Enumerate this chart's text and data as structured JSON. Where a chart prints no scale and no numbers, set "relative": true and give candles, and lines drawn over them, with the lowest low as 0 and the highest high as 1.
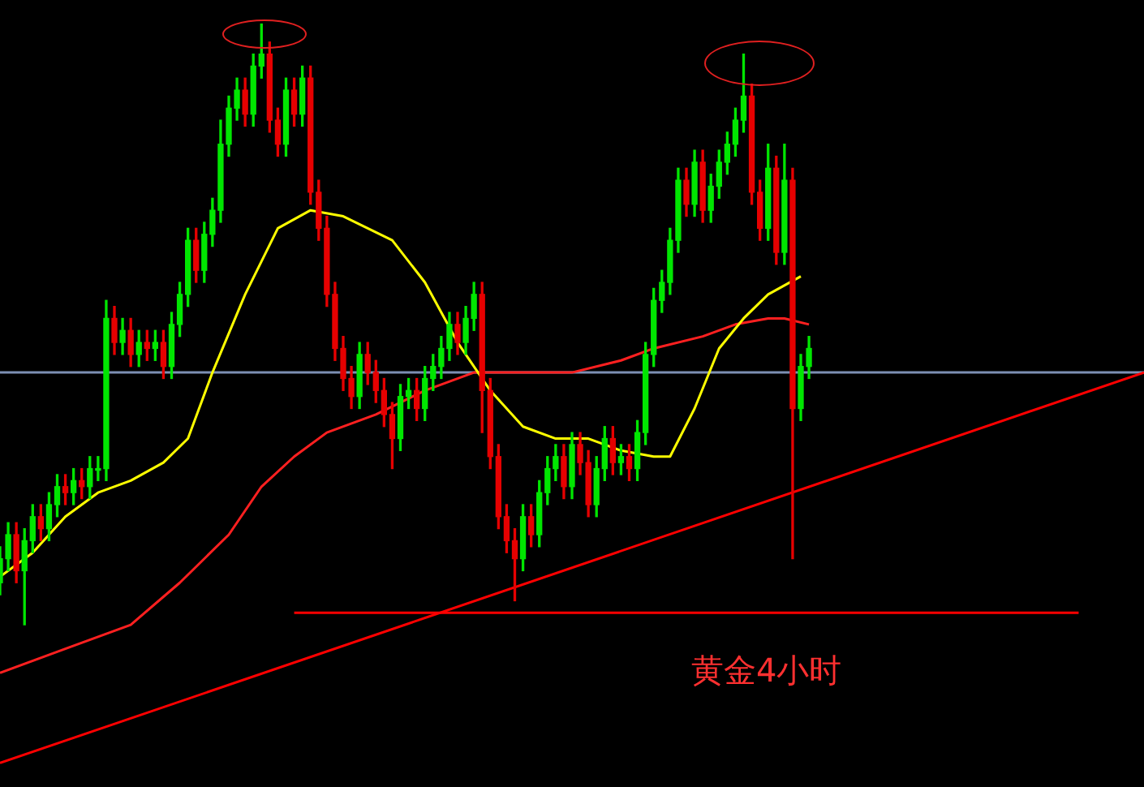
{
  "chart_data": {
    "type": "candlestick",
    "relative": true,
    "tick_labels": false,
    "legend": false,
    "categories": [
      null,
      null,
      null,
      null,
      null,
      null,
      null,
      null,
      null,
      null,
      null,
      null,
      null,
      null,
      null,
      null,
      null,
      null,
      null,
      null,
      null,
      null,
      null,
      null,
      null,
      null,
      null,
      null,
      null,
      null,
      null,
      null,
      null,
      null,
      null,
      null,
      null,
      null,
      null,
      null,
      null,
      null,
      null,
      null,
      null,
      null,
      null,
      null,
      null,
      null,
      null,
      null,
      null,
      null,
      null,
      null,
      null,
      null,
      null,
      null,
      null,
      null,
      null,
      null,
      null,
      null,
      null,
      null,
      null,
      null,
      null,
      null,
      null,
      null,
      null,
      null,
      null,
      null,
      null,
      null,
      null,
      null,
      null,
      null,
      null,
      null,
      null,
      null,
      null,
      null,
      null,
      null,
      null,
      null,
      null,
      null,
      null,
      null,
      null,
      null,
      null,
      null,
      null,
      null,
      null,
      null,
      null,
      null,
      null,
      null,
      null,
      null,
      null,
      null,
      null,
      null,
      null,
      null,
      null,
      null,
      null,
      null,
      null,
      null,
      null,
      null,
      null,
      null,
      null,
      null,
      null,
      null,
      null,
      null,
      null,
      null,
      null,
      null,
      null,
      null,
      null
    ],
    "ohlc": [
      [
        0.07,
        0.13,
        0.05,
        0.11
      ],
      [
        0.11,
        0.17,
        0.09,
        0.15
      ],
      [
        0.15,
        0.17,
        0.07,
        0.09
      ],
      [
        0.09,
        0.16,
        0,
        0.14
      ],
      [
        0.14,
        0.2,
        0.12,
        0.18
      ],
      [
        0.18,
        0.2,
        0.14,
        0.16
      ],
      [
        0.16,
        0.22,
        0.14,
        0.2
      ],
      [
        0.2,
        0.25,
        0.18,
        0.23
      ],
      [
        0.23,
        0.25,
        0.2,
        0.22
      ],
      [
        0.22,
        0.26,
        0.2,
        0.24
      ],
      [
        0.24,
        0.26,
        0.21,
        0.23
      ],
      [
        0.23,
        0.28,
        0.21,
        0.26
      ],
      [
        0.26,
        0.28,
        0.24,
        0.26
      ],
      [
        0.26,
        0.54,
        0.24,
        0.51
      ],
      [
        0.51,
        0.53,
        0.45,
        0.47
      ],
      [
        0.47,
        0.51,
        0.45,
        0.49
      ],
      [
        0.49,
        0.51,
        0.43,
        0.45
      ],
      [
        0.45,
        0.49,
        0.43,
        0.47
      ],
      [
        0.47,
        0.49,
        0.44,
        0.46
      ],
      [
        0.46,
        0.49,
        0.44,
        0.47
      ],
      [
        0.47,
        0.49,
        0.41,
        0.43
      ],
      [
        0.43,
        0.52,
        0.41,
        0.5
      ],
      [
        0.5,
        0.57,
        0.48,
        0.55
      ],
      [
        0.55,
        0.66,
        0.53,
        0.64
      ],
      [
        0.64,
        0.66,
        0.57,
        0.59
      ],
      [
        0.59,
        0.67,
        0.57,
        0.65
      ],
      [
        0.65,
        0.71,
        0.63,
        0.69
      ],
      [
        0.69,
        0.84,
        0.67,
        0.8
      ],
      [
        0.8,
        0.88,
        0.78,
        0.86
      ],
      [
        0.86,
        0.91,
        0.84,
        0.89
      ],
      [
        0.89,
        0.91,
        0.83,
        0.85
      ],
      [
        0.85,
        0.95,
        0.83,
        0.93
      ],
      [
        0.93,
        1,
        0.91,
        0.95
      ],
      [
        0.95,
        0.97,
        0.82,
        0.84
      ],
      [
        0.84,
        0.86,
        0.78,
        0.8
      ],
      [
        0.8,
        0.91,
        0.78,
        0.89
      ],
      [
        0.89,
        0.91,
        0.83,
        0.85
      ],
      [
        0.85,
        0.93,
        0.83,
        0.91
      ],
      [
        0.91,
        0.93,
        0.7,
        0.72
      ],
      [
        0.72,
        0.74,
        0.64,
        0.66
      ],
      [
        0.66,
        0.68,
        0.53,
        0.55
      ],
      [
        0.55,
        0.57,
        0.44,
        0.46
      ],
      [
        0.46,
        0.48,
        0.39,
        0.41
      ],
      [
        0.41,
        0.43,
        0.36,
        0.38
      ],
      [
        0.38,
        0.47,
        0.36,
        0.45
      ],
      [
        0.45,
        0.47,
        0.4,
        0.42
      ],
      [
        0.42,
        0.44,
        0.37,
        0.39
      ],
      [
        0.39,
        0.41,
        0.33,
        0.35
      ],
      [
        0.35,
        0.37,
        0.26,
        0.31
      ],
      [
        0.31,
        0.4,
        0.29,
        0.38
      ],
      [
        0.38,
        0.41,
        0.36,
        0.39
      ],
      [
        0.39,
        0.41,
        0.34,
        0.36
      ],
      [
        0.36,
        0.43,
        0.34,
        0.41
      ],
      [
        0.41,
        0.45,
        0.39,
        0.43
      ],
      [
        0.43,
        0.48,
        0.41,
        0.46
      ],
      [
        0.46,
        0.52,
        0.44,
        0.5
      ],
      [
        0.5,
        0.52,
        0.45,
        0.47
      ],
      [
        0.47,
        0.53,
        0.45,
        0.51
      ],
      [
        0.51,
        0.57,
        0.49,
        0.55
      ],
      [
        0.55,
        0.57,
        0.32,
        0.39
      ],
      [
        0.39,
        0.41,
        0.26,
        0.28
      ],
      [
        0.28,
        0.3,
        0.16,
        0.18
      ],
      [
        0.18,
        0.2,
        0.12,
        0.14
      ],
      [
        0.14,
        0.16,
        0.04,
        0.11
      ],
      [
        0.11,
        0.2,
        0.09,
        0.18
      ],
      [
        0.18,
        0.2,
        0.13,
        0.15
      ],
      [
        0.15,
        0.24,
        0.13,
        0.22
      ],
      [
        0.22,
        0.28,
        0.2,
        0.26
      ],
      [
        0.26,
        0.3,
        0.24,
        0.28
      ],
      [
        0.28,
        0.3,
        0.21,
        0.23
      ],
      [
        0.23,
        0.32,
        0.21,
        0.3
      ],
      [
        0.3,
        0.32,
        0.25,
        0.27
      ],
      [
        0.27,
        0.29,
        0.18,
        0.2
      ],
      [
        0.2,
        0.28,
        0.18,
        0.26
      ],
      [
        0.26,
        0.33,
        0.24,
        0.31
      ],
      [
        0.31,
        0.33,
        0.25,
        0.27
      ],
      [
        0.27,
        0.3,
        0.25,
        0.28
      ],
      [
        0.28,
        0.3,
        0.24,
        0.26
      ],
      [
        0.26,
        0.34,
        0.24,
        0.32
      ],
      [
        0.32,
        0.47,
        0.3,
        0.45
      ],
      [
        0.45,
        0.56,
        0.43,
        0.54
      ],
      [
        0.54,
        0.59,
        0.52,
        0.57
      ],
      [
        0.57,
        0.66,
        0.55,
        0.64
      ],
      [
        0.64,
        0.76,
        0.62,
        0.74
      ],
      [
        0.74,
        0.76,
        0.68,
        0.7
      ],
      [
        0.7,
        0.79,
        0.68,
        0.77
      ],
      [
        0.77,
        0.79,
        0.67,
        0.69
      ],
      [
        0.69,
        0.75,
        0.67,
        0.73
      ],
      [
        0.73,
        0.79,
        0.71,
        0.77
      ],
      [
        0.77,
        0.82,
        0.75,
        0.8
      ],
      [
        0.8,
        0.86,
        0.78,
        0.84
      ],
      [
        0.84,
        0.95,
        0.82,
        0.88
      ],
      [
        0.88,
        0.9,
        0.7,
        0.72
      ],
      [
        0.72,
        0.74,
        0.64,
        0.66
      ],
      [
        0.66,
        0.8,
        0.64,
        0.76
      ],
      [
        0.76,
        0.78,
        0.6,
        0.62
      ],
      [
        0.62,
        0.8,
        0.6,
        0.74
      ],
      [
        0.74,
        0.76,
        0.11,
        0.36
      ],
      [
        0.36,
        0.45,
        0.34,
        0.43
      ],
      [
        0.43,
        0.48,
        0.41,
        0.46
      ],
      null,
      null,
      null,
      null,
      null,
      null,
      null,
      null,
      null,
      null,
      null,
      null,
      null,
      null,
      null,
      null,
      null,
      null,
      null,
      null,
      null,
      null,
      null,
      null,
      null,
      null,
      null,
      null,
      null,
      null,
      null,
      null,
      null,
      null,
      null,
      null,
      null,
      null,
      null,
      null,
      null
    ],
    "colors": [
      "#00e600",
      "#00e600",
      "#e60000",
      "#00e600",
      "#00e600",
      "#e60000",
      "#00e600",
      "#00e600",
      "#e60000",
      "#00e600",
      "#e60000",
      "#00e600",
      "#00e600",
      "#00e600",
      "#e60000",
      "#00e600",
      "#e60000",
      "#00e600",
      "#e60000",
      "#00e600",
      "#e60000",
      "#00e600",
      "#00e600",
      "#00e600",
      "#e60000",
      "#00e600",
      "#00e600",
      "#00e600",
      "#00e600",
      "#00e600",
      "#e60000",
      "#00e600",
      "#00e600",
      "#e60000",
      "#e60000",
      "#00e600",
      "#e60000",
      "#00e600",
      "#e60000",
      "#e60000",
      "#e60000",
      "#e60000",
      "#e60000",
      "#e60000",
      "#00e600",
      "#e60000",
      "#e60000",
      "#e60000",
      "#e60000",
      "#00e600",
      "#00e600",
      "#e60000",
      "#00e600",
      "#00e600",
      "#00e600",
      "#00e600",
      "#e60000",
      "#00e600",
      "#00e600",
      "#e60000",
      "#e60000",
      "#e60000",
      "#e60000",
      "#e60000",
      "#00e600",
      "#e60000",
      "#00e600",
      "#00e600",
      "#00e600",
      "#e60000",
      "#00e600",
      "#e60000",
      "#e60000",
      "#00e600",
      "#00e600",
      "#e60000",
      "#00e600",
      "#e60000",
      "#00e600",
      "#00e600",
      "#00e600",
      "#00e600",
      "#00e600",
      "#00e600",
      "#e60000",
      "#00e600",
      "#e60000",
      "#00e600",
      "#00e600",
      "#00e600",
      "#00e600",
      "#00e600",
      "#e60000",
      "#e60000",
      "#00e600",
      "#e60000",
      "#00e600",
      "#e60000",
      "#00e600",
      "#00e600",
      null,
      null,
      null,
      null,
      null,
      null,
      null,
      null,
      null,
      null,
      null,
      null,
      null,
      null,
      null,
      null,
      null,
      null,
      null,
      null,
      null,
      null,
      null,
      null,
      null,
      null,
      null,
      null,
      null,
      null,
      null,
      null,
      null,
      null,
      null,
      null,
      null,
      null,
      null,
      null,
      null
    ],
    "series": [
      {
        "type": "line",
        "color": "#ffff00",
        "values": [
          0.08,
          null,
          null,
          null,
          0.12,
          null,
          null,
          null,
          0.18,
          null,
          null,
          null,
          0.22,
          null,
          null,
          null,
          0.24,
          null,
          null,
          null,
          0.27,
          null,
          null,
          0.31,
          null,
          null,
          0.42,
          null,
          null,
          null,
          0.55,
          null,
          null,
          null,
          0.66,
          null,
          null,
          null,
          0.69,
          null,
          null,
          null,
          0.68,
          null,
          null,
          null,
          null,
          null,
          0.64,
          null,
          null,
          null,
          0.57,
          null,
          null,
          null,
          0.47,
          null,
          null,
          null,
          0.39,
          null,
          null,
          null,
          0.33,
          null,
          null,
          null,
          0.31,
          null,
          null,
          null,
          0.31,
          null,
          null,
          null,
          0.29,
          null,
          null,
          null,
          0.28,
          null,
          0.28,
          null,
          null,
          0.36,
          null,
          null,
          0.46,
          null,
          null,
          0.51,
          null,
          null,
          0.55,
          null,
          null,
          null,
          0.58,
          null,
          null,
          null,
          null,
          null,
          null,
          null,
          null,
          null,
          null,
          null,
          null,
          null,
          null,
          null,
          null,
          null,
          null,
          null,
          null,
          null,
          null,
          null,
          null,
          null,
          null,
          null,
          null,
          null,
          null,
          null,
          null,
          null,
          null,
          null,
          null,
          null,
          null,
          null,
          null,
          null,
          null
        ]
      },
      {
        "type": "line",
        "color": "#ff2020",
        "values": [
          -0.08,
          null,
          null,
          null,
          null,
          null,
          null,
          null,
          -0.04,
          null,
          null,
          null,
          null,
          null,
          null,
          null,
          0,
          null,
          null,
          null,
          null,
          null,
          0.07,
          null,
          null,
          null,
          null,
          null,
          0.15,
          null,
          null,
          null,
          0.23,
          null,
          null,
          null,
          0.28,
          null,
          null,
          null,
          0.32,
          null,
          null,
          null,
          null,
          null,
          0.35,
          null,
          null,
          null,
          null,
          null,
          0.39,
          null,
          null,
          null,
          null,
          null,
          0.42,
          null,
          null,
          null,
          null,
          null,
          0.42,
          null,
          null,
          null,
          null,
          null,
          0.42,
          null,
          null,
          null,
          null,
          null,
          0.44,
          null,
          null,
          null,
          0.46,
          null,
          null,
          null,
          null,
          null,
          0.48,
          null,
          null,
          null,
          0.5,
          null,
          null,
          null,
          0.51,
          null,
          0.51,
          null,
          null,
          0.5,
          null,
          null,
          null,
          null,
          null,
          null,
          null,
          null,
          null,
          null,
          null,
          null,
          null,
          null,
          null,
          null,
          null,
          null,
          null,
          null,
          null,
          null,
          null,
          null,
          null,
          null,
          null,
          null,
          null,
          null,
          null,
          null,
          null,
          null,
          null,
          null,
          null,
          null,
          null,
          null,
          null
        ]
      },
      {
        "type": "line",
        "color": "#ff0000",
        "values": [
          -0.23,
          null,
          null,
          null,
          null,
          null,
          null,
          null,
          null,
          null,
          null,
          null,
          null,
          null,
          null,
          null,
          null,
          null,
          null,
          null,
          null,
          null,
          null,
          null,
          null,
          null,
          null,
          null,
          null,
          null,
          null,
          null,
          null,
          null,
          null,
          null,
          null,
          null,
          null,
          null,
          null,
          null,
          null,
          null,
          null,
          null,
          null,
          null,
          null,
          null,
          null,
          null,
          null,
          null,
          null,
          null,
          null,
          null,
          null,
          null,
          null,
          null,
          null,
          null,
          null,
          null,
          null,
          null,
          null,
          null,
          null,
          null,
          null,
          null,
          null,
          null,
          null,
          null,
          null,
          null,
          null,
          null,
          null,
          null,
          null,
          null,
          null,
          null,
          null,
          null,
          null,
          null,
          null,
          null,
          null,
          null,
          null,
          null,
          null,
          null,
          null,
          null,
          null,
          null,
          null,
          null,
          null,
          null,
          null,
          null,
          null,
          null,
          null,
          null,
          null,
          null,
          null,
          null,
          null,
          null,
          null,
          null,
          null,
          null,
          null,
          null,
          null,
          null,
          null,
          null,
          null,
          null,
          null,
          null,
          null,
          null,
          null,
          null,
          null,
          null,
          0.42
        ]
      },
      {
        "type": "line",
        "color": "#ff0000",
        "values": [
          null,
          null,
          null,
          null,
          null,
          null,
          null,
          null,
          null,
          null,
          null,
          null,
          null,
          null,
          null,
          null,
          null,
          null,
          null,
          null,
          null,
          null,
          null,
          null,
          null,
          null,
          null,
          null,
          null,
          null,
          null,
          null,
          null,
          null,
          null,
          null,
          0.02,
          null,
          null,
          null,
          null,
          null,
          null,
          null,
          null,
          null,
          null,
          null,
          null,
          null,
          null,
          null,
          null,
          null,
          null,
          null,
          null,
          null,
          null,
          null,
          null,
          null,
          null,
          null,
          null,
          null,
          null,
          null,
          null,
          null,
          null,
          null,
          null,
          null,
          null,
          null,
          null,
          null,
          null,
          null,
          null,
          null,
          null,
          null,
          null,
          null,
          null,
          null,
          null,
          null,
          null,
          null,
          null,
          null,
          null,
          null,
          null,
          null,
          null,
          null,
          null,
          null,
          null,
          null,
          null,
          null,
          null,
          null,
          null,
          null,
          null,
          null,
          null,
          null,
          null,
          null,
          null,
          null,
          null,
          null,
          null,
          null,
          null,
          null,
          null,
          null,
          null,
          null,
          null,
          null,
          null,
          null,
          0.02,
          null,
          null,
          null,
          null,
          null,
          null,
          null,
          null
        ]
      },
      {
        "type": "line",
        "color": "#7d8fb3",
        "values": [
          0.42,
          null,
          null,
          null,
          null,
          null,
          null,
          null,
          null,
          null,
          null,
          null,
          null,
          null,
          null,
          null,
          null,
          null,
          null,
          null,
          null,
          null,
          null,
          null,
          null,
          null,
          null,
          null,
          null,
          null,
          null,
          null,
          null,
          null,
          null,
          null,
          null,
          null,
          null,
          null,
          null,
          null,
          null,
          null,
          null,
          null,
          null,
          null,
          null,
          null,
          null,
          null,
          null,
          null,
          null,
          null,
          null,
          null,
          null,
          null,
          null,
          null,
          null,
          null,
          null,
          null,
          null,
          null,
          null,
          null,
          null,
          null,
          null,
          null,
          null,
          null,
          null,
          null,
          null,
          null,
          null,
          null,
          null,
          null,
          null,
          null,
          null,
          null,
          null,
          null,
          null,
          null,
          null,
          null,
          null,
          null,
          null,
          null,
          null,
          null,
          null,
          null,
          null,
          null,
          null,
          null,
          null,
          null,
          null,
          null,
          null,
          null,
          null,
          null,
          null,
          null,
          null,
          null,
          null,
          null,
          null,
          null,
          null,
          null,
          null,
          null,
          null,
          null,
          null,
          null,
          null,
          null,
          null,
          null,
          null,
          null,
          null,
          null,
          null,
          null,
          0.42
        ]
      }
    ],
    "annotations": [
      "黄金4小时"
    ]
  }
}
